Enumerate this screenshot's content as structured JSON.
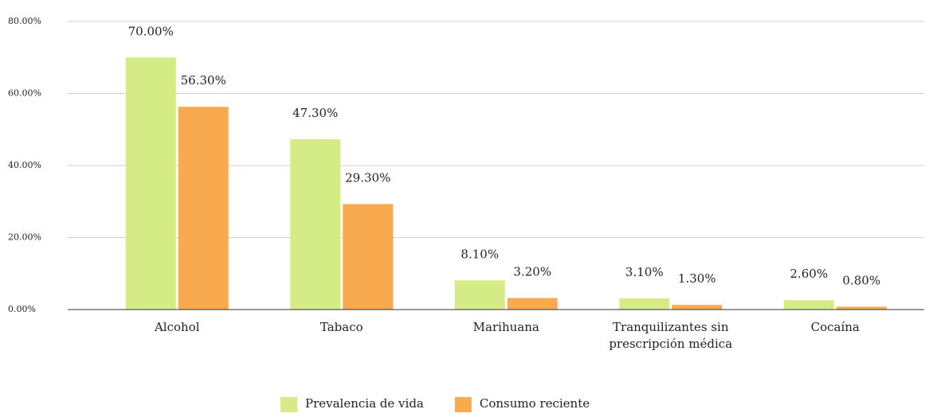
{
  "chart_data": {
    "type": "bar",
    "categories": [
      "Alcohol",
      "Tabaco",
      "Marihuana",
      "Tranquilizantes sin prescripción médica",
      "Cocaína"
    ],
    "series": [
      {
        "name": "Prevalencia de vida",
        "color": "#d5eb85",
        "values": [
          70,
          47.3,
          8.1,
          3.1,
          2.6
        ],
        "value_labels": [
          "70.00%",
          "47.30%",
          "8.10%",
          "3.10%",
          "2.60%"
        ]
      },
      {
        "name": "Consumo reciente",
        "color": "#f9aa4e",
        "values": [
          56.3,
          29.3,
          3.2,
          1.3,
          0.8
        ],
        "value_labels": [
          "56.30%",
          "29.30%",
          "3.20%",
          "1.30%",
          "0.80%"
        ]
      }
    ],
    "ylim": [
      0,
      80
    ],
    "yticks": [
      {
        "value": 0,
        "label": "0.00%"
      },
      {
        "value": 20,
        "label": "20.00%"
      },
      {
        "value": 40,
        "label": "40.00%"
      },
      {
        "value": 60,
        "label": "60.00%"
      },
      {
        "value": 80,
        "label": "80.00%"
      }
    ],
    "grid": true,
    "legend": "bottom"
  }
}
